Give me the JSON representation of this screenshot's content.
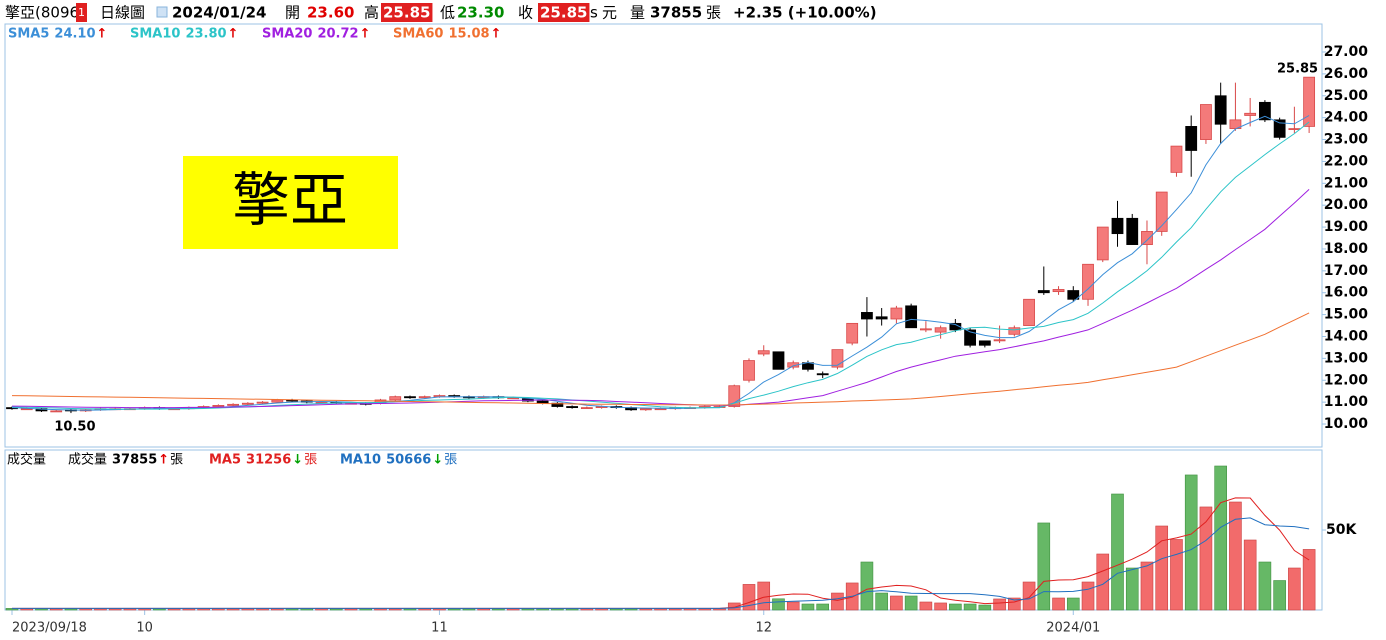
{
  "chart_data": {
    "type": "candlestick",
    "header": {
      "name": "擎亞(8096)",
      "badge": "1",
      "period": "日線圖",
      "date": "2024/01/24",
      "open_label": "開",
      "open": "23.60",
      "high_label": "高",
      "high": "25.85",
      "low_label": "低",
      "low": "23.30",
      "close_label": "收",
      "close": "25.85",
      "s": "s",
      "unit": "元",
      "volume_label": "量",
      "volume": "37855",
      "volume_unit": "張",
      "change": "+2.35 (+10.00%)"
    },
    "watermark": "擎亞",
    "categories": [
      "2023/09/18",
      null,
      null,
      null,
      null,
      null,
      null,
      null,
      null,
      "10",
      null,
      null,
      null,
      null,
      null,
      null,
      null,
      null,
      null,
      null,
      null,
      null,
      null,
      null,
      null,
      null,
      null,
      null,
      null,
      "11",
      null,
      null,
      null,
      null,
      null,
      null,
      null,
      null,
      null,
      null,
      null,
      null,
      null,
      null,
      null,
      null,
      null,
      null,
      null,
      null,
      null,
      "12",
      null,
      null,
      null,
      null,
      null,
      null,
      null,
      null,
      null,
      null,
      null,
      null,
      null,
      null,
      null,
      null,
      null,
      null,
      null,
      null,
      "2024/01",
      null,
      null,
      null,
      null,
      null,
      null,
      null,
      null,
      null,
      null,
      null,
      null,
      null,
      null,
      null,
      null
    ],
    "open": [
      10.75,
      10.7,
      10.7,
      10.6,
      10.65,
      10.6,
      10.65,
      10.7,
      10.7,
      10.7,
      10.75,
      10.7,
      10.7,
      10.75,
      10.8,
      10.85,
      10.9,
      10.95,
      11.0,
      11.1,
      11.05,
      11.0,
      11.0,
      10.95,
      10.95,
      10.95,
      11.1,
      11.25,
      11.2,
      11.25,
      11.3,
      11.25,
      11.2,
      11.25,
      11.2,
      11.15,
      11.05,
      10.95,
      10.8,
      10.75,
      10.75,
      10.8,
      10.75,
      10.65,
      10.7,
      10.7,
      10.75,
      10.75,
      10.8,
      10.8,
      12.0,
      13.2,
      13.3,
      12.6,
      12.8,
      12.3,
      12.6,
      13.7,
      15.1,
      14.9,
      14.8,
      15.4,
      14.3,
      14.2,
      14.6,
      14.3,
      13.8,
      13.8,
      14.1,
      14.5,
      16.1,
      16.05,
      16.1,
      15.7,
      17.5,
      19.4,
      19.4,
      18.2,
      18.8,
      21.5,
      23.6,
      23.0,
      25.0,
      23.5,
      24.1,
      24.7,
      23.9,
      23.5,
      23.6
    ],
    "high": [
      10.8,
      10.75,
      10.75,
      10.65,
      10.7,
      10.7,
      10.75,
      10.75,
      10.75,
      10.8,
      10.8,
      10.75,
      10.8,
      10.85,
      10.9,
      10.95,
      11.0,
      11.05,
      11.15,
      11.15,
      11.1,
      11.05,
      11.05,
      11.0,
      11.0,
      11.15,
      11.3,
      11.3,
      11.3,
      11.35,
      11.35,
      11.3,
      11.3,
      11.3,
      11.25,
      11.2,
      11.1,
      11.0,
      10.85,
      10.8,
      10.85,
      10.85,
      10.8,
      10.75,
      10.75,
      10.8,
      10.8,
      10.85,
      10.85,
      11.8,
      13.0,
      13.6,
      13.3,
      12.9,
      12.9,
      12.4,
      13.4,
      14.6,
      15.8,
      15.3,
      15.4,
      15.5,
      14.7,
      14.5,
      14.8,
      14.4,
      13.8,
      14.5,
      14.5,
      15.7,
      17.2,
      16.3,
      16.3,
      17.3,
      19.0,
      20.2,
      19.6,
      19.3,
      20.6,
      22.7,
      24.1,
      24.6,
      25.6,
      25.6,
      24.9,
      24.8,
      24.0,
      24.5,
      25.85
    ],
    "low": [
      10.65,
      10.65,
      10.55,
      10.55,
      10.5,
      10.55,
      10.6,
      10.65,
      10.65,
      10.65,
      10.65,
      10.65,
      10.65,
      10.7,
      10.75,
      10.8,
      10.85,
      10.9,
      10.95,
      11.0,
      10.95,
      10.95,
      10.9,
      10.9,
      10.85,
      10.9,
      11.05,
      11.15,
      11.15,
      11.2,
      11.2,
      11.15,
      11.15,
      11.15,
      11.15,
      11.0,
      10.9,
      10.75,
      10.7,
      10.7,
      10.7,
      10.7,
      10.6,
      10.6,
      10.65,
      10.65,
      10.7,
      10.7,
      10.75,
      10.75,
      11.9,
      13.1,
      12.5,
      12.5,
      12.4,
      12.1,
      12.5,
      13.6,
      14.0,
      14.5,
      14.6,
      14.4,
      14.2,
      13.9,
      14.2,
      13.5,
      13.5,
      13.7,
      14.0,
      14.5,
      15.9,
      15.9,
      15.6,
      15.4,
      17.4,
      18.1,
      18.2,
      17.3,
      18.6,
      21.3,
      21.3,
      22.8,
      22.8,
      23.4,
      23.6,
      23.8,
      23.0,
      23.3,
      23.3
    ],
    "close": [
      10.7,
      10.7,
      10.6,
      10.6,
      10.6,
      10.65,
      10.7,
      10.7,
      10.7,
      10.75,
      10.7,
      10.7,
      10.75,
      10.8,
      10.85,
      10.9,
      10.95,
      11.0,
      11.1,
      11.05,
      11.0,
      11.0,
      10.95,
      10.95,
      10.9,
      11.1,
      11.25,
      11.2,
      11.25,
      11.3,
      11.25,
      11.2,
      11.25,
      11.2,
      11.2,
      11.05,
      10.95,
      10.8,
      10.75,
      10.75,
      10.8,
      10.75,
      10.65,
      10.7,
      10.7,
      10.75,
      10.75,
      10.8,
      10.8,
      11.75,
      12.9,
      13.35,
      12.5,
      12.8,
      12.5,
      12.25,
      13.4,
      14.6,
      14.8,
      14.8,
      15.3,
      14.4,
      14.35,
      14.4,
      14.3,
      13.6,
      13.6,
      13.85,
      14.4,
      15.7,
      16.0,
      16.15,
      15.7,
      17.3,
      19.0,
      18.7,
      18.2,
      18.8,
      20.6,
      22.7,
      22.5,
      24.6,
      23.7,
      23.9,
      24.2,
      23.9,
      23.1,
      23.5,
      25.85
    ],
    "up_color": "#f47a7a",
    "up_stroke": "#d84848",
    "down_color": "#000000",
    "ylim": [
      8.95,
      28.28
    ],
    "yticks": [
      {
        "value": 10,
        "label": "10.00"
      },
      {
        "value": 11,
        "label": "11.00"
      },
      {
        "value": 12,
        "label": "12.00"
      },
      {
        "value": 13,
        "label": "13.00"
      },
      {
        "value": 14,
        "label": "14.00"
      },
      {
        "value": 15,
        "label": "15.00"
      },
      {
        "value": 16,
        "label": "16.00"
      },
      {
        "value": 17,
        "label": "17.00"
      },
      {
        "value": 18,
        "label": "18.00"
      },
      {
        "value": 19,
        "label": "19.00"
      },
      {
        "value": 20,
        "label": "20.00"
      },
      {
        "value": 21,
        "label": "21.00"
      },
      {
        "value": 22,
        "label": "22.00"
      },
      {
        "value": 23,
        "label": "23.00"
      },
      {
        "value": 24,
        "label": "24.00"
      },
      {
        "value": 25,
        "label": "25.00"
      },
      {
        "value": 26,
        "label": "26.00"
      },
      {
        "value": 27,
        "label": "27.00"
      }
    ],
    "lines": [
      {
        "name": "SMA5",
        "value_label": "24.10",
        "trend": "↑",
        "trend_color": "#e00000",
        "color": "#3c8fd8",
        "values": [
          10.75,
          10.72,
          10.68,
          10.66,
          10.64,
          10.63,
          10.64,
          10.66,
          10.68,
          10.7,
          10.71,
          10.72,
          10.72,
          10.74,
          10.76,
          10.8,
          10.85,
          10.9,
          10.96,
          11.0,
          11.02,
          11.03,
          11.02,
          11.0,
          10.96,
          10.98,
          11.03,
          11.08,
          11.16,
          11.24,
          11.25,
          11.24,
          11.25,
          11.24,
          11.22,
          11.18,
          11.13,
          11.04,
          10.95,
          10.86,
          10.81,
          10.77,
          10.74,
          10.73,
          10.72,
          10.71,
          10.72,
          10.74,
          10.76,
          10.97,
          11.4,
          11.92,
          12.26,
          12.66,
          12.81,
          12.68,
          12.69,
          13.11,
          13.51,
          13.97,
          14.58,
          14.78,
          14.73,
          14.65,
          14.55,
          14.21,
          14.05,
          13.95,
          13.95,
          14.23,
          14.71,
          15.22,
          15.59,
          16.17,
          16.83,
          17.37,
          17.78,
          18.4,
          19.06,
          19.8,
          20.56,
          21.84,
          22.82,
          23.48,
          23.78,
          24.06,
          23.76,
          23.72,
          24.1
        ]
      },
      {
        "name": "SMA10",
        "value_label": "23.80",
        "trend": "↑",
        "trend_color": "#e00000",
        "color": "#2cc4c8",
        "values": [
          10.78,
          10.77,
          10.75,
          10.73,
          10.71,
          10.7,
          10.69,
          10.68,
          10.68,
          10.68,
          10.68,
          10.69,
          10.7,
          10.71,
          10.73,
          10.76,
          10.78,
          10.81,
          10.85,
          10.88,
          10.91,
          10.94,
          10.96,
          10.98,
          10.98,
          10.99,
          11.02,
          11.05,
          11.08,
          11.1,
          11.12,
          11.14,
          11.17,
          11.2,
          11.23,
          11.21,
          11.18,
          11.15,
          11.1,
          11.05,
          11.0,
          10.95,
          10.89,
          10.84,
          10.79,
          10.76,
          10.74,
          10.74,
          10.74,
          10.95,
          11.16,
          11.32,
          11.5,
          11.71,
          11.89,
          12.04,
          12.31,
          12.69,
          13.09,
          13.39,
          13.63,
          13.74,
          13.92,
          14.08,
          14.26,
          14.4,
          14.42,
          14.34,
          14.3,
          14.39,
          14.46,
          14.64,
          14.77,
          15.06,
          15.53,
          16.04,
          16.5,
          17.0,
          17.62,
          18.32,
          18.97,
          19.81,
          20.61,
          21.27,
          21.79,
          22.31,
          22.8,
          23.27,
          23.8
        ]
      },
      {
        "name": "SMA20",
        "value_label": "20.72",
        "trend": "↑",
        "trend_color": "#e00000",
        "color": "#a020e0",
        "values": [
          10.82,
          10.81,
          10.8,
          10.79,
          10.78,
          10.77,
          10.76,
          10.76,
          10.75,
          10.75,
          10.75,
          10.75,
          10.76,
          10.76,
          10.77,
          10.78,
          10.79,
          10.8,
          10.82,
          10.84,
          10.86,
          10.88,
          10.9,
          10.92,
          10.93,
          10.94,
          10.95,
          10.96,
          10.98,
          11.0,
          11.02,
          11.04,
          11.06,
          11.07,
          11.08,
          11.09,
          11.1,
          11.1,
          11.09,
          11.08,
          11.06,
          11.03,
          11.0,
          10.97,
          10.94,
          10.91,
          10.88,
          10.86,
          10.85,
          10.85,
          10.9,
          10.95,
          11.0,
          11.1,
          11.2,
          11.3,
          11.5,
          11.7,
          11.9,
          12.15,
          12.4,
          12.6,
          12.77,
          12.93,
          13.1,
          13.2,
          13.3,
          13.4,
          13.53,
          13.67,
          13.8,
          13.97,
          14.13,
          14.3,
          14.6,
          14.9,
          15.2,
          15.53,
          15.87,
          16.2,
          16.63,
          17.07,
          17.5,
          17.97,
          18.43,
          18.9,
          19.5,
          20.1,
          20.72
        ]
      },
      {
        "name": "SMA60",
        "value_label": "15.08",
        "trend": "↑",
        "trend_color": "#e00000",
        "color": "#f07030",
        "values": [
          11.3,
          11.29,
          11.28,
          11.27,
          11.26,
          11.25,
          11.24,
          11.23,
          11.22,
          11.21,
          11.2,
          11.19,
          11.18,
          11.17,
          11.16,
          11.15,
          11.14,
          11.13,
          11.12,
          11.11,
          11.1,
          11.09,
          11.08,
          11.07,
          11.06,
          11.05,
          11.04,
          11.03,
          11.02,
          11.01,
          11.0,
          10.99,
          10.98,
          10.97,
          10.96,
          10.95,
          10.94,
          10.93,
          10.92,
          10.91,
          10.9,
          10.9,
          10.89,
          10.89,
          10.88,
          10.88,
          10.88,
          10.87,
          10.87,
          10.87,
          10.89,
          10.91,
          10.93,
          10.96,
          10.98,
          11.0,
          11.02,
          11.05,
          11.07,
          11.1,
          11.12,
          11.15,
          11.2,
          11.26,
          11.32,
          11.38,
          11.44,
          11.5,
          11.57,
          11.63,
          11.7,
          11.77,
          11.83,
          11.9,
          12.02,
          12.13,
          12.25,
          12.37,
          12.48,
          12.6,
          12.85,
          13.1,
          13.35,
          13.6,
          13.85,
          14.1,
          14.43,
          14.75,
          15.08
        ]
      }
    ],
    "annotations": [
      {
        "text": "10.50",
        "index": 4,
        "at": "low"
      },
      {
        "text": "25.85",
        "index": 88,
        "at": "high"
      }
    ],
    "volume": {
      "title": "成交量",
      "name": "成交量",
      "value_label": "37855",
      "trend": "↑",
      "trend_color": "#e00000",
      "unit": "張",
      "up_color": "#f26b6b",
      "up_stroke": "#c84040",
      "down_color": "#66b866",
      "down_stroke": "#3f8f3f",
      "ylim": [
        0,
        100000
      ],
      "yticks": [
        {
          "value": 50000,
          "label": "50K"
        }
      ],
      "values": [
        1000,
        1000,
        1000,
        1000,
        1000,
        1000,
        1000,
        1000,
        1000,
        1000,
        1000,
        1000,
        1000,
        1000,
        1000,
        1000,
        1000,
        1000,
        1000,
        1000,
        1000,
        1000,
        1000,
        1000,
        1000,
        1000,
        1000,
        1000,
        1000,
        1000,
        1000,
        1000,
        1000,
        1000,
        1000,
        1000,
        1000,
        1000,
        1000,
        1000,
        1000,
        1000,
        1000,
        1000,
        1000,
        1000,
        1000,
        1000,
        1000,
        4400,
        16000,
        17500,
        7000,
        5000,
        3750,
        3750,
        10600,
        16900,
        30000,
        10600,
        8750,
        8750,
        5000,
        4400,
        3750,
        3750,
        3100,
        6900,
        7500,
        17500,
        54400,
        7500,
        7500,
        17500,
        35000,
        72500,
        26250,
        30000,
        52500,
        44080,
        84400,
        64400,
        90000,
        67500,
        43750,
        30000,
        18425,
        26250,
        37855
      ],
      "lines": [
        {
          "name": "MA5",
          "value_label": "31256",
          "trend": "↓",
          "trend_color": "#00a000",
          "unit": "張",
          "color": "#e02020",
          "values": [
            1000,
            1000,
            1000,
            1000,
            1000,
            1000,
            1000,
            1000,
            1000,
            1000,
            1000,
            1000,
            1000,
            1000,
            1000,
            1000,
            1000,
            1000,
            1000,
            1000,
            1000,
            1000,
            1000,
            1000,
            1000,
            1000,
            1000,
            1000,
            1000,
            1000,
            1000,
            1000,
            1000,
            1000,
            1000,
            1000,
            1000,
            1000,
            1000,
            1000,
            1000,
            1000,
            1000,
            1000,
            1000,
            1000,
            1000,
            1000,
            1000,
            1680,
            4680,
            7980,
            9180,
            9980,
            9850,
            7400,
            6020,
            8000,
            13000,
            14370,
            15370,
            15000,
            12620,
            7500,
            6130,
            5130,
            4000,
            4380,
            5000,
            7750,
            17880,
            18760,
            18880,
            20880,
            24380,
            28000,
            31750,
            36250,
            43250,
            45066,
            47446,
            55076,
            67076,
            70076,
            70010,
            59130,
            49935,
            37185,
            31256
          ]
        },
        {
          "name": "MA10",
          "value_label": "50666",
          "trend": "↓",
          "trend_color": "#00a000",
          "unit": "張",
          "color": "#2070c0",
          "values": [
            1000,
            1000,
            1000,
            1000,
            1000,
            1000,
            1000,
            1000,
            1000,
            1000,
            1000,
            1000,
            1000,
            1000,
            1000,
            1000,
            1000,
            1000,
            1000,
            1000,
            1000,
            1000,
            1000,
            1000,
            1000,
            1000,
            1000,
            1000,
            1000,
            1000,
            1000,
            1000,
            1000,
            1000,
            1000,
            1000,
            1000,
            1000,
            1000,
            1000,
            1000,
            1000,
            1000,
            1000,
            1000,
            1000,
            1000,
            1000,
            1000,
            1340,
            2840,
            4490,
            5090,
            5490,
            5765,
            6040,
            7000,
            8590,
            11490,
            12110,
            11385,
            10510,
            10310,
            10250,
            10250,
            10250,
            9500,
            8500,
            6250,
            6940,
            11505,
            11380,
            11630,
            12940,
            16065,
            22940,
            25255,
            27565,
            32065,
            34723,
            37723,
            43413,
            51663,
            56663,
            57538,
            53288,
            52506,
            52131,
            50666
          ]
        }
      ]
    }
  }
}
